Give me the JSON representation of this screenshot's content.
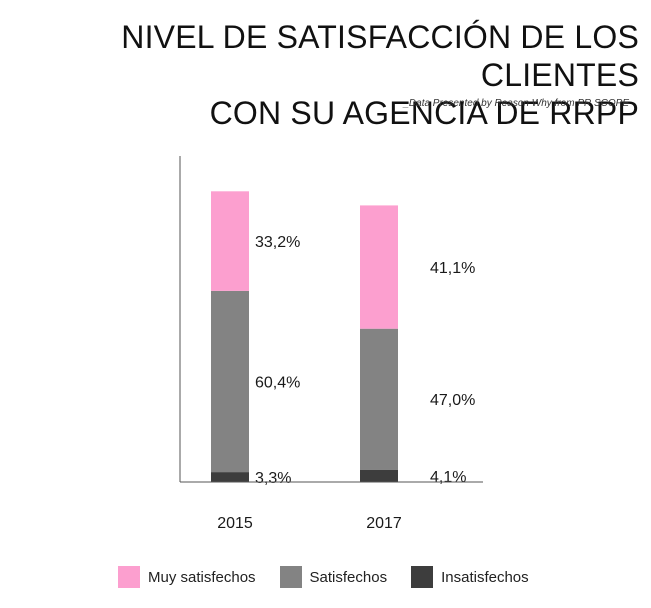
{
  "title_lines": [
    "NIVEL DE SATISFACCIÓN DE LOS CLIENTES",
    "CON SU AGENCIA DE RRPP"
  ],
  "source": "_Data Presented by Reason Why from PR SCOPE",
  "chart_data": {
    "type": "bar",
    "stacked": true,
    "categories": [
      "2015",
      "2017"
    ],
    "series": [
      {
        "name": "Insatisfechos",
        "values": [
          3.3,
          4.1
        ],
        "labels": [
          "3,3%",
          "4,1%"
        ],
        "color": "#3d3d3d"
      },
      {
        "name": "Satisfechos",
        "values": [
          60.4,
          47.0
        ],
        "labels": [
          "60,4%",
          "47,0%"
        ],
        "color": "#838383"
      },
      {
        "name": "Muy satisfechos",
        "values": [
          33.2,
          41.1
        ],
        "labels": [
          "33,2%",
          "41,1%"
        ],
        "color": "#fc9fcf"
      }
    ],
    "ylim": [
      0,
      100
    ],
    "grid": false,
    "legend_position": "bottom",
    "legend_order": [
      "Muy satisfechos",
      "Satisfechos",
      "Insatisfechos"
    ]
  }
}
